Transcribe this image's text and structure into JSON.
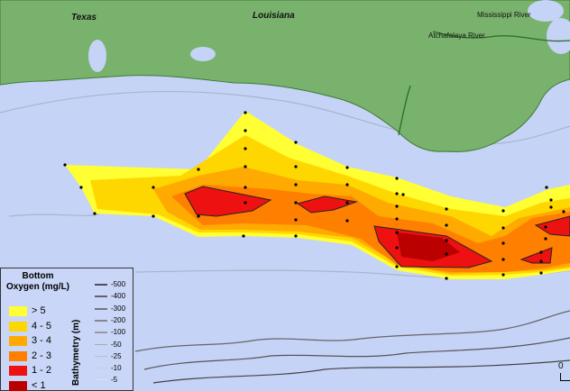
{
  "colors": {
    "land": "#78b26c",
    "water": "#c5d3f6",
    "gt5": "#ffff33",
    "c4_5": "#ffd700",
    "c3_4": "#ffaa00",
    "c2_3": "#ff7f00",
    "c1_2": "#ee1111",
    "lt1": "#bb0000"
  },
  "labels": {
    "texas": "Texas",
    "louisiana": "Louisiana",
    "mississippi": "Mississippi River",
    "atchafalaya": "Atchafalaya River",
    "scale_zero": "0"
  },
  "legend": {
    "oxygen_title": "Bottom Oxygen (mg/L)",
    "oxygen_classes": [
      {
        "label": "> 5",
        "color": "#ffff33"
      },
      {
        "label": "4 - 5",
        "color": "#ffd700"
      },
      {
        "label": "3 - 4",
        "color": "#ffaa00"
      },
      {
        "label": "2 - 3",
        "color": "#ff7f00"
      },
      {
        "label": "1 - 2",
        "color": "#ee1111"
      },
      {
        "label": "< 1",
        "color": "#bb0000"
      }
    ],
    "bathymetry_title": "Bathymetry (m)",
    "bathymetry_classes": [
      "-500",
      "-400",
      "-300",
      "-200",
      "-100",
      "-50",
      "-25",
      "-10",
      "-5"
    ]
  }
}
